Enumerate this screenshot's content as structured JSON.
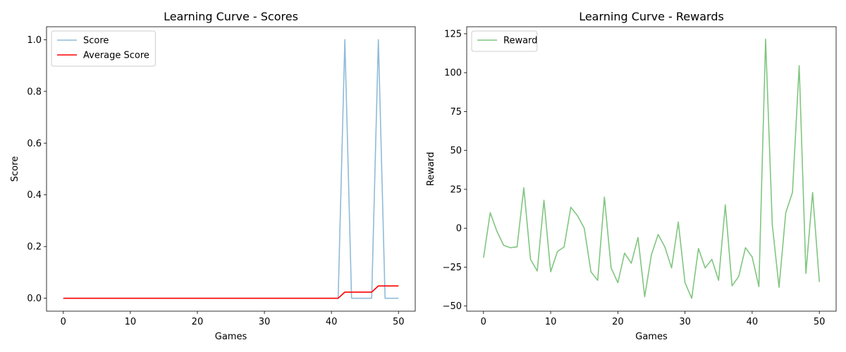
{
  "chart_data": [
    {
      "type": "line",
      "title": "Learning Curve - Scores",
      "xlabel": "Games",
      "ylabel": "Score",
      "xlim": [
        -2.5,
        52.5
      ],
      "ylim": [
        -0.05,
        1.05
      ],
      "xticks": [
        0,
        10,
        20,
        30,
        40,
        50
      ],
      "yticks": [
        0.0,
        0.2,
        0.4,
        0.6,
        0.8,
        1.0
      ],
      "ytick_labels": [
        "0.0",
        "0.2",
        "0.4",
        "0.6",
        "0.8",
        "1.0"
      ],
      "grid": false,
      "legend_position": "top-left",
      "x": [
        0,
        1,
        2,
        3,
        4,
        5,
        6,
        7,
        8,
        9,
        10,
        11,
        12,
        13,
        14,
        15,
        16,
        17,
        18,
        19,
        20,
        21,
        22,
        23,
        24,
        25,
        26,
        27,
        28,
        29,
        30,
        31,
        32,
        33,
        34,
        35,
        36,
        37,
        38,
        39,
        40,
        41,
        42,
        43,
        44,
        45,
        46,
        47,
        48,
        49,
        50
      ],
      "series": [
        {
          "name": "Score",
          "color": "#1f77b4",
          "alpha": 0.5,
          "values": [
            0,
            0,
            0,
            0,
            0,
            0,
            0,
            0,
            0,
            0,
            0,
            0,
            0,
            0,
            0,
            0,
            0,
            0,
            0,
            0,
            0,
            0,
            0,
            0,
            0,
            0,
            0,
            0,
            0,
            0,
            0,
            0,
            0,
            0,
            0,
            0,
            0,
            0,
            0,
            0,
            0,
            0,
            1,
            0,
            0,
            0,
            0,
            1,
            0,
            0,
            0
          ]
        },
        {
          "name": "Average Score",
          "color": "#ff0000",
          "alpha": 1.0,
          "values": [
            0,
            0,
            0,
            0,
            0,
            0,
            0,
            0,
            0,
            0,
            0,
            0,
            0,
            0,
            0,
            0,
            0,
            0,
            0,
            0,
            0,
            0,
            0,
            0,
            0,
            0,
            0,
            0,
            0,
            0,
            0,
            0,
            0,
            0,
            0,
            0,
            0,
            0,
            0,
            0,
            0,
            0,
            0.0238,
            0.0238,
            0.0238,
            0.0238,
            0.0238,
            0.0476,
            0.0476,
            0.0476,
            0.0476
          ]
        }
      ]
    },
    {
      "type": "line",
      "title": "Learning Curve - Rewards",
      "xlabel": "Games",
      "ylabel": "Reward",
      "xlim": [
        -2.5,
        52.5
      ],
      "ylim": [
        -53.3,
        129.5
      ],
      "xticks": [
        0,
        10,
        20,
        30,
        40,
        50
      ],
      "yticks": [
        -50,
        -25,
        0,
        25,
        50,
        75,
        100,
        125
      ],
      "ytick_labels": [
        "−50",
        "−25",
        "0",
        "25",
        "50",
        "75",
        "100",
        "125"
      ],
      "grid": false,
      "legend_position": "top-left",
      "x": [
        0,
        1,
        2,
        3,
        4,
        5,
        6,
        7,
        8,
        9,
        10,
        11,
        12,
        13,
        14,
        15,
        16,
        17,
        18,
        19,
        20,
        21,
        22,
        23,
        24,
        25,
        26,
        27,
        28,
        29,
        30,
        31,
        32,
        33,
        34,
        35,
        36,
        37,
        38,
        39,
        40,
        41,
        42,
        43,
        44,
        45,
        46,
        47,
        48,
        49,
        50
      ],
      "series": [
        {
          "name": "Reward",
          "color": "#2ca02c",
          "alpha": 0.6,
          "values": [
            -19,
            10,
            -2,
            -11,
            -12.5,
            -12,
            26,
            -20,
            -27.5,
            18,
            -28,
            -15,
            -12,
            13.5,
            8,
            0,
            -28,
            -33.5,
            20,
            -25.5,
            -35,
            -16,
            -22.5,
            -6,
            -44,
            -17,
            -4,
            -12,
            -25.5,
            4,
            -35,
            -45,
            -13,
            -25.5,
            -20,
            -33.5,
            15,
            -37,
            -31,
            -12.5,
            -18.5,
            -37.5,
            121.5,
            2,
            -38,
            10,
            23,
            104.5,
            -29,
            23,
            -34.5
          ]
        }
      ]
    }
  ]
}
